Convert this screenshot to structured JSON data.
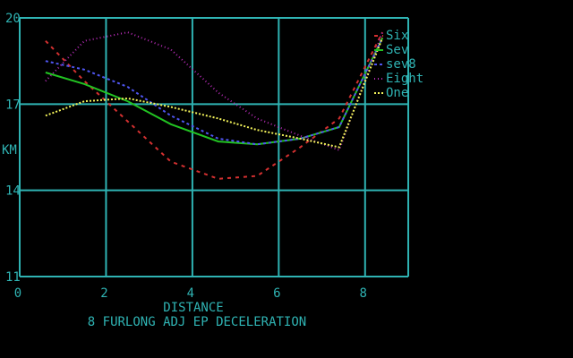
{
  "colors": {
    "background": "#000000",
    "grid": "#2fb3b3",
    "text": "#2fb3b3"
  },
  "chart_data": {
    "type": "line",
    "title": "",
    "xlabel": "DISTANCE",
    "ylabel": "KM",
    "subtitle": "8 FURLONG ADJ EP DECELERATION",
    "xlim": [
      0,
      9
    ],
    "ylim": [
      11,
      20
    ],
    "x_ticks": [
      0,
      2,
      4,
      6,
      8
    ],
    "y_ticks": [
      11,
      14,
      17,
      20
    ],
    "grid": true,
    "legend_position": "top-right",
    "series": [
      {
        "name": "Six",
        "color": "#d43030",
        "dash": "4,5",
        "x": [
          0.6,
          1.5,
          2.5,
          3.5,
          4.6,
          5.5,
          6.5,
          7.4,
          8.4
        ],
        "y": [
          19.2,
          17.8,
          16.4,
          15.0,
          14.4,
          14.5,
          15.5,
          16.5,
          19.5
        ]
      },
      {
        "name": "Sev",
        "color": "#22c322",
        "dash": "",
        "x": [
          0.6,
          1.5,
          2.5,
          3.5,
          4.6,
          5.5,
          6.5,
          7.4,
          8.4
        ],
        "y": [
          18.1,
          17.7,
          17.1,
          16.3,
          15.7,
          15.6,
          15.8,
          16.2,
          19.3
        ]
      },
      {
        "name": "sev8",
        "color": "#4f55f0",
        "dash": "3,3",
        "x": [
          0.6,
          1.5,
          2.5,
          3.5,
          4.6,
          5.5,
          6.5,
          7.4,
          8.4
        ],
        "y": [
          18.5,
          18.2,
          17.6,
          16.6,
          15.8,
          15.6,
          15.8,
          16.2,
          19.3
        ]
      },
      {
        "name": "Eight",
        "color": "#b52bb5",
        "dash": "1,3",
        "x": [
          0.6,
          1.5,
          2.5,
          3.5,
          4.6,
          5.5,
          6.5,
          7.4,
          8.4
        ],
        "y": [
          17.8,
          19.2,
          19.5,
          18.9,
          17.4,
          16.5,
          15.9,
          15.4,
          19.5
        ]
      },
      {
        "name": "One",
        "color": "#f2f25a",
        "dash": "2,2",
        "x": [
          0.6,
          1.5,
          2.5,
          3.5,
          4.6,
          5.5,
          6.5,
          7.4,
          8.4
        ],
        "y": [
          16.6,
          17.1,
          17.2,
          16.9,
          16.5,
          16.1,
          15.8,
          15.5,
          19.3
        ]
      }
    ]
  }
}
